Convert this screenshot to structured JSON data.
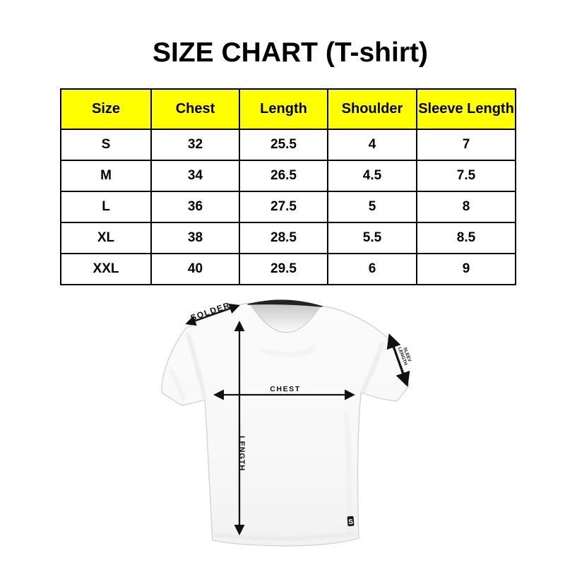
{
  "title": "SIZE CHART (T-shirt)",
  "size_table": {
    "columns": [
      "Size",
      "Chest",
      "Length",
      "Shoulder",
      "Sleeve Length"
    ],
    "rows": [
      [
        "S",
        "32",
        "25.5",
        "4",
        "7"
      ],
      [
        "M",
        "34",
        "26.5",
        "4.5",
        "7.5"
      ],
      [
        "L",
        "36",
        "27.5",
        "5",
        "8"
      ],
      [
        "XL",
        "38",
        "28.5",
        "5.5",
        "8.5"
      ],
      [
        "XXL",
        "40",
        "29.5",
        "6",
        "9"
      ]
    ]
  },
  "diagram": {
    "shoulder_label": "SOLDER",
    "chest_label": "CHEST",
    "length_label": "LENGTH",
    "sleeve_label_line1": "SLEEV",
    "sleeve_label_line2": "LENGTH",
    "logo_text": "S"
  },
  "colors": {
    "header_bg": "#FFFF00",
    "table_border": "#000000",
    "arrow": "#111111",
    "collar": "#232323",
    "shirt_outline": "#d4d4d4"
  }
}
